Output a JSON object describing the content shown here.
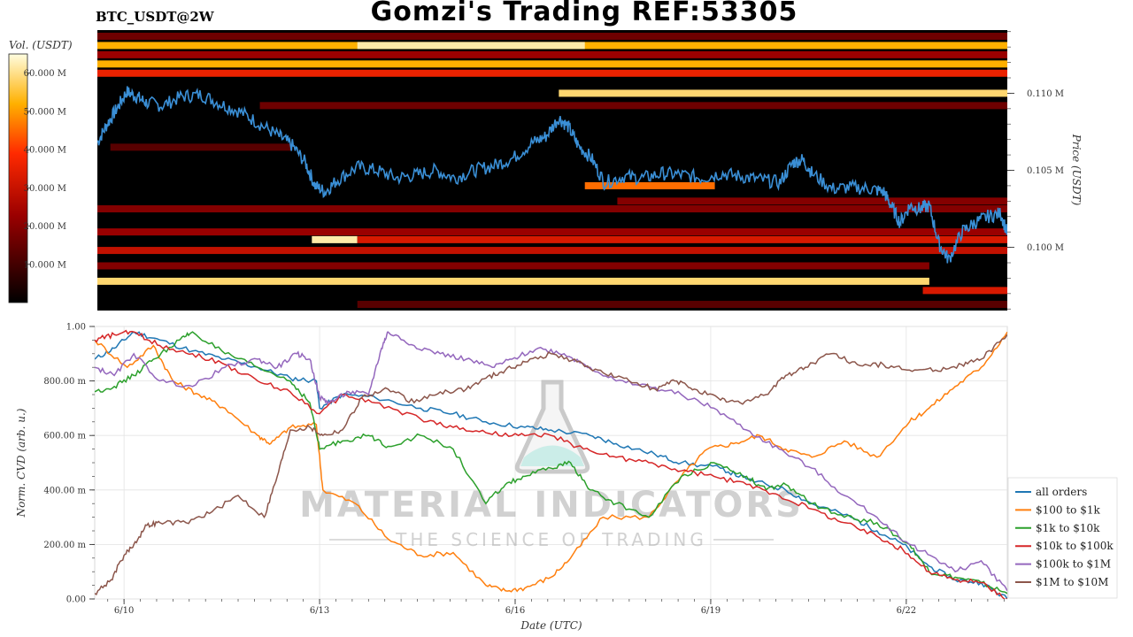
{
  "header": {
    "pair": "BTC_USDT@2W",
    "title": "Gomzi's Trading REF:53305"
  },
  "watermark": {
    "line1": "MATERIAL INDICATORS",
    "line2": "THE SCIENCE OF TRADING"
  },
  "chart_data": [
    {
      "type": "heatmap",
      "name": "orderbook-heatmap",
      "colorbar": {
        "label": "Vol. (USDT)",
        "ticks": [
          "10.000 M",
          "20.000 M",
          "30.000 M",
          "40.000 M",
          "50.000 M",
          "60.000 M"
        ],
        "range": [
          0,
          65
        ],
        "colormap": "hot"
      },
      "ylabel": "Price (USDT)",
      "ylim": [
        0.0959,
        0.1141
      ],
      "yticks": [
        {
          "value": 0.1,
          "label": "0.100 M"
        },
        {
          "value": 0.105,
          "label": "0.105 M"
        },
        {
          "value": 0.11,
          "label": "0.110 M"
        }
      ],
      "xlim": [
        0,
        14
      ],
      "bands": [
        {
          "price": 0.1137,
          "start": 0,
          "end": 14,
          "intensity": 0.25
        },
        {
          "price": 0.1131,
          "start": 0,
          "end": 14,
          "intensity": 0.8
        },
        {
          "price": 0.1131,
          "start": 4,
          "end": 7.5,
          "intensity": 0.95
        },
        {
          "price": 0.1125,
          "start": 0,
          "end": 14,
          "intensity": 0.35
        },
        {
          "price": 0.1119,
          "start": 0,
          "end": 14,
          "intensity": 0.8
        },
        {
          "price": 0.1113,
          "start": 0,
          "end": 14,
          "intensity": 0.55
        },
        {
          "price": 0.11,
          "start": 7.1,
          "end": 14,
          "intensity": 0.9
        },
        {
          "price": 0.1092,
          "start": 2.5,
          "end": 14,
          "intensity": 0.25
        },
        {
          "price": 0.1065,
          "start": 0.2,
          "end": 3,
          "intensity": 0.2
        },
        {
          "price": 0.104,
          "start": 7.5,
          "end": 9.5,
          "intensity": 0.7
        },
        {
          "price": 0.103,
          "start": 8,
          "end": 14,
          "intensity": 0.3
        },
        {
          "price": 0.1025,
          "start": 0,
          "end": 14,
          "intensity": 0.3
        },
        {
          "price": 0.101,
          "start": 0,
          "end": 14,
          "intensity": 0.35
        },
        {
          "price": 0.1005,
          "start": 3.3,
          "end": 4,
          "intensity": 0.95
        },
        {
          "price": 0.1005,
          "start": 4,
          "end": 14,
          "intensity": 0.5
        },
        {
          "price": 0.0998,
          "start": 0,
          "end": 14,
          "intensity": 0.45
        },
        {
          "price": 0.0988,
          "start": 0,
          "end": 12.8,
          "intensity": 0.3
        },
        {
          "price": 0.0978,
          "start": 0,
          "end": 12.8,
          "intensity": 0.9
        },
        {
          "price": 0.0972,
          "start": 12.7,
          "end": 14,
          "intensity": 0.5
        },
        {
          "price": 0.0963,
          "start": 4,
          "end": 14,
          "intensity": 0.2
        }
      ],
      "price_line": {
        "color": "#3a8fd6",
        "x": [
          0,
          0.15,
          0.3,
          0.45,
          0.6,
          0.75,
          1,
          1.3,
          1.6,
          1.9,
          2.2,
          2.5,
          2.8,
          3.0,
          3.2,
          3.35,
          3.5,
          3.7,
          4.0,
          4.3,
          4.6,
          4.9,
          5.2,
          5.5,
          5.8,
          6.1,
          6.4,
          6.7,
          6.9,
          7.1,
          7.25,
          7.4,
          7.6,
          7.8,
          8.1,
          8.4,
          8.7,
          9.0,
          9.3,
          9.6,
          9.9,
          10.2,
          10.5,
          10.7,
          10.85,
          11.0,
          11.3,
          11.6,
          11.9,
          12.1,
          12.2,
          12.35,
          12.5,
          12.65,
          12.8,
          12.95,
          13.1,
          13.3,
          13.5,
          13.7,
          13.9,
          14.0
        ],
        "y": [
          0.1068,
          0.108,
          0.109,
          0.1101,
          0.1098,
          0.1094,
          0.1092,
          0.1098,
          0.1099,
          0.1093,
          0.1088,
          0.108,
          0.1072,
          0.1066,
          0.1055,
          0.104,
          0.1036,
          0.1044,
          0.1052,
          0.105,
          0.1045,
          0.1047,
          0.105,
          0.1045,
          0.105,
          0.1053,
          0.1058,
          0.1068,
          0.1072,
          0.1084,
          0.1078,
          0.1066,
          0.1058,
          0.1042,
          0.1046,
          0.1045,
          0.1048,
          0.1047,
          0.1045,
          0.1048,
          0.1046,
          0.1044,
          0.1042,
          0.1055,
          0.1057,
          0.1048,
          0.1038,
          0.1039,
          0.1038,
          0.1036,
          0.1028,
          0.1016,
          0.1027,
          0.1025,
          0.1027,
          0.1002,
          0.0992,
          0.101,
          0.1016,
          0.102,
          0.1022,
          0.1009
        ]
      }
    },
    {
      "type": "line",
      "name": "norm-cvd",
      "xlabel": "Date (UTC)",
      "ylabel": "Norm. CVD (arb. u.)",
      "ylim": [
        0,
        1
      ],
      "xlim": [
        0,
        14
      ],
      "yticks": [
        {
          "value": 0,
          "label": "0.00"
        },
        {
          "value": 0.2,
          "label": "200.00 m"
        },
        {
          "value": 0.4,
          "label": "400.00 m"
        },
        {
          "value": 0.6,
          "label": "600.00 m"
        },
        {
          "value": 0.8,
          "label": "800.00 m"
        },
        {
          "value": 1.0,
          "label": "1.00"
        }
      ],
      "xticks": [
        {
          "value": 0.45,
          "label": "6/10"
        },
        {
          "value": 3.45,
          "label": "6/13"
        },
        {
          "value": 6.45,
          "label": "6/16"
        },
        {
          "value": 9.45,
          "label": "6/19"
        },
        {
          "value": 12.45,
          "label": "6/22"
        }
      ],
      "grid": true,
      "legend": "bottom-right",
      "series": [
        {
          "name": "all orders",
          "color": "#1f77b4",
          "x": [
            0,
            0.3,
            0.6,
            1,
            1.5,
            2,
            2.5,
            3,
            3.4,
            3.45,
            3.8,
            4.3,
            5,
            5.5,
            6,
            6.6,
            7,
            7.6,
            8,
            8.6,
            9,
            9.6,
            10,
            10.6,
            11,
            11.6,
            12,
            12.4,
            12.8,
            13.2,
            13.6,
            14
          ],
          "y": [
            0.88,
            0.92,
            0.98,
            0.95,
            0.91,
            0.88,
            0.85,
            0.81,
            0.8,
            0.7,
            0.75,
            0.74,
            0.7,
            0.68,
            0.65,
            0.63,
            0.62,
            0.6,
            0.57,
            0.53,
            0.5,
            0.48,
            0.44,
            0.4,
            0.35,
            0.3,
            0.25,
            0.2,
            0.12,
            0.07,
            0.06,
            0.0
          ]
        },
        {
          "name": "$100 to $1k",
          "color": "#ff7f0e",
          "x": [
            0,
            0.5,
            0.9,
            1.2,
            1.6,
            2.0,
            2.5,
            2.7,
            3.0,
            3.4,
            3.5,
            4,
            4.5,
            5,
            5.5,
            6,
            6.3,
            6.6,
            7,
            7.3,
            7.8,
            8.5,
            9,
            9.4,
            9.8,
            10.2,
            10.6,
            11,
            11.5,
            12,
            12.5,
            12.8,
            13.2,
            13.6,
            14
          ],
          "y": [
            0.95,
            0.85,
            0.93,
            0.8,
            0.75,
            0.7,
            0.6,
            0.57,
            0.63,
            0.64,
            0.4,
            0.35,
            0.22,
            0.16,
            0.17,
            0.05,
            0.03,
            0.04,
            0.08,
            0.15,
            0.3,
            0.3,
            0.45,
            0.55,
            0.57,
            0.6,
            0.55,
            0.52,
            0.58,
            0.52,
            0.65,
            0.7,
            0.78,
            0.85,
            0.98
          ]
        },
        {
          "name": "$1k to $10k",
          "color": "#2ca02c",
          "x": [
            0,
            0.3,
            0.6,
            0.9,
            1.3,
            1.5,
            2,
            2.5,
            3,
            3.3,
            3.45,
            3.8,
            4.2,
            4.5,
            5,
            5.5,
            6,
            6.3,
            6.6,
            7,
            7.3,
            7.6,
            8,
            8.5,
            9,
            9.5,
            10,
            10.3,
            10.6,
            11,
            11.5,
            12,
            12.5,
            12.8,
            13.2,
            13.6,
            14
          ],
          "y": [
            0.76,
            0.78,
            0.82,
            0.88,
            0.95,
            0.98,
            0.9,
            0.85,
            0.8,
            0.72,
            0.55,
            0.58,
            0.6,
            0.56,
            0.6,
            0.55,
            0.35,
            0.42,
            0.45,
            0.48,
            0.5,
            0.4,
            0.35,
            0.3,
            0.45,
            0.5,
            0.45,
            0.4,
            0.42,
            0.35,
            0.3,
            0.28,
            0.2,
            0.1,
            0.08,
            0.06,
            0.02
          ]
        },
        {
          "name": "$10k to $100k",
          "color": "#d62728",
          "x": [
            0,
            0.3,
            0.6,
            1,
            1.5,
            2,
            2.5,
            3,
            3.45,
            3.8,
            4.3,
            5,
            5.5,
            6,
            6.5,
            7,
            7.5,
            8,
            8.5,
            9,
            9.5,
            10,
            10.5,
            11,
            11.5,
            12,
            12.4,
            12.8,
            13.2,
            13.6,
            14
          ],
          "y": [
            0.95,
            0.97,
            0.98,
            0.93,
            0.9,
            0.86,
            0.8,
            0.76,
            0.68,
            0.75,
            0.72,
            0.66,
            0.63,
            0.61,
            0.6,
            0.6,
            0.55,
            0.52,
            0.5,
            0.47,
            0.45,
            0.42,
            0.38,
            0.33,
            0.28,
            0.23,
            0.18,
            0.1,
            0.07,
            0.06,
            0.0
          ]
        },
        {
          "name": "$100k to $1M",
          "color": "#9467bd",
          "x": [
            0,
            0.3,
            0.6,
            1,
            1.5,
            2,
            2.5,
            2.8,
            3.1,
            3.3,
            3.45,
            3.6,
            3.9,
            4.2,
            4.4,
            4.5,
            4.9,
            5.3,
            5.7,
            6.1,
            6.4,
            6.8,
            7.2,
            7.6,
            8,
            8.5,
            9,
            9.5,
            10,
            10.5,
            11,
            11.5,
            12,
            12.5,
            12.9,
            13.2,
            13.6,
            14
          ],
          "y": [
            0.85,
            0.82,
            0.9,
            0.8,
            0.78,
            0.85,
            0.88,
            0.85,
            0.9,
            0.88,
            0.74,
            0.72,
            0.76,
            0.75,
            0.92,
            0.98,
            0.93,
            0.9,
            0.88,
            0.85,
            0.88,
            0.92,
            0.9,
            0.85,
            0.8,
            0.78,
            0.75,
            0.7,
            0.62,
            0.55,
            0.48,
            0.38,
            0.3,
            0.2,
            0.15,
            0.1,
            0.14,
            0.03
          ]
        },
        {
          "name": "$1M to $10M",
          "color": "#8c564b",
          "x": [
            0,
            0.25,
            0.45,
            0.6,
            0.8,
            1.0,
            1.4,
            1.8,
            2.2,
            2.6,
            2.8,
            3.0,
            3.3,
            3.5,
            3.8,
            4.1,
            4.5,
            4.9,
            5.3,
            5.7,
            6.0,
            6.3,
            6.6,
            7.0,
            7.4,
            7.8,
            8.2,
            8.6,
            8.9,
            9.2,
            9.6,
            9.9,
            10.3,
            10.6,
            10.9,
            11.3,
            11.7,
            12.1,
            12.5,
            12.9,
            13.3,
            13.6,
            14
          ],
          "y": [
            0.02,
            0.07,
            0.16,
            0.2,
            0.27,
            0.28,
            0.28,
            0.32,
            0.38,
            0.3,
            0.45,
            0.62,
            0.63,
            0.6,
            0.62,
            0.74,
            0.77,
            0.72,
            0.76,
            0.77,
            0.81,
            0.84,
            0.87,
            0.9,
            0.87,
            0.83,
            0.8,
            0.77,
            0.8,
            0.77,
            0.73,
            0.72,
            0.75,
            0.82,
            0.85,
            0.9,
            0.86,
            0.86,
            0.84,
            0.84,
            0.86,
            0.88,
            0.97
          ]
        }
      ]
    }
  ]
}
